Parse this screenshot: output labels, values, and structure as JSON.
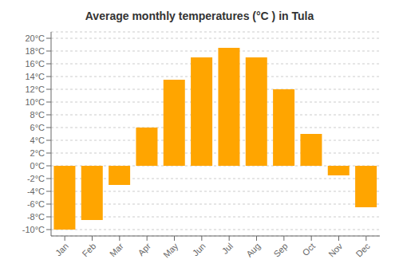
{
  "chart_data": {
    "type": "bar",
    "title": "Average monthly temperatures (°C ) in Tula",
    "categories": [
      "Jan",
      "Feb",
      "Mar",
      "Apr",
      "May",
      "Jun",
      "Jul",
      "Aug",
      "Sep",
      "Oct",
      "Nov",
      "Dec"
    ],
    "values": [
      -10,
      -8.5,
      -3,
      6,
      13.5,
      17,
      18.5,
      17,
      12,
      5,
      -1.5,
      -6.5
    ],
    "color": "#FFA500",
    "ylim": [
      -11,
      21
    ],
    "yticks": [
      {
        "value": 20,
        "label": "20°C"
      },
      {
        "value": 18,
        "label": "18°C"
      },
      {
        "value": 16,
        "label": "16°C"
      },
      {
        "value": 14,
        "label": "14°C"
      },
      {
        "value": 12,
        "label": "12°C"
      },
      {
        "value": 10,
        "label": "10°C"
      },
      {
        "value": 8,
        "label": "8°C"
      },
      {
        "value": 6,
        "label": "6°C"
      },
      {
        "value": 4,
        "label": "4°C"
      },
      {
        "value": 2,
        "label": "2°C"
      },
      {
        "value": 0,
        "label": "0°C"
      },
      {
        "value": -2,
        "label": "-2°C"
      },
      {
        "value": -4,
        "label": "-4°C"
      },
      {
        "value": -6,
        "label": "-6°C"
      },
      {
        "value": -8,
        "label": "-8°C"
      },
      {
        "value": -10,
        "label": "-10°C"
      }
    ],
    "grid": true
  }
}
